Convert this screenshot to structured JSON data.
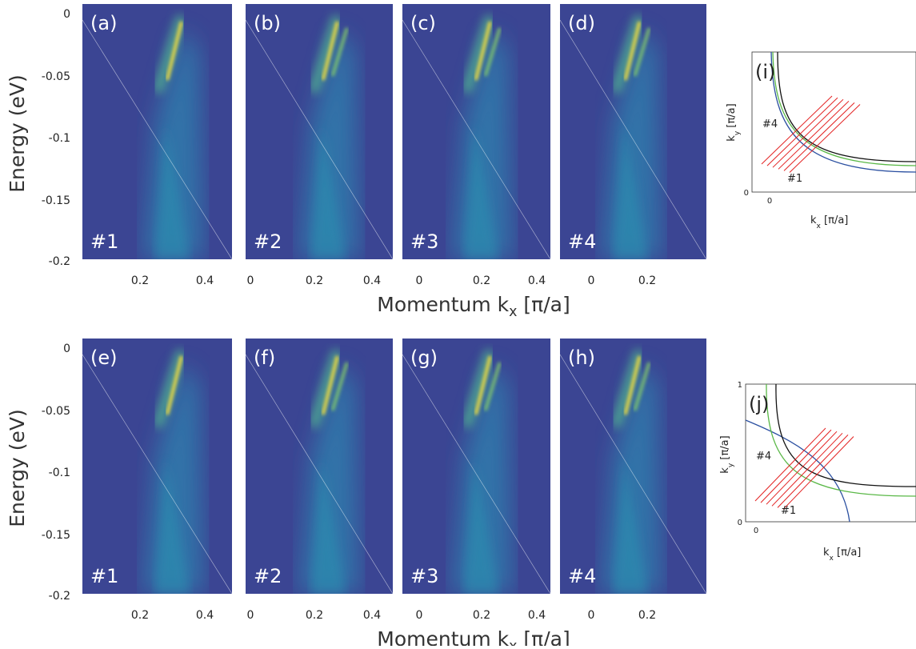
{
  "figure": {
    "rows": [
      {
        "panels": [
          {
            "label": "(a)",
            "cut": "#1",
            "xticks": [
              "0.2",
              "0.4"
            ]
          },
          {
            "label": "(b)",
            "cut": "#2",
            "xticks": [
              "0",
              "0.2",
              "0.4"
            ]
          },
          {
            "label": "(c)",
            "cut": "#3",
            "xticks": [
              "0",
              "0.2",
              "0.4"
            ]
          },
          {
            "label": "(d)",
            "cut": "#4",
            "xticks": [
              "0",
              "0.2"
            ]
          }
        ],
        "yticks": [
          "0",
          "-0.05",
          "-0.1",
          "-0.15",
          "-0.2"
        ],
        "ylabel": "Energy  (eV)",
        "xlabel": {
          "main": "Momentum k",
          "sub": "x",
          "unit": " [π/a]"
        }
      },
      {
        "panels": [
          {
            "label": "(e)",
            "cut": "#1",
            "xticks": [
              "0.2",
              "0.4"
            ]
          },
          {
            "label": "(f)",
            "cut": "#2",
            "xticks": [
              "0",
              "0.2",
              "0.4"
            ]
          },
          {
            "label": "(g)",
            "cut": "#3",
            "xticks": [
              "0",
              "0.2",
              "0.4"
            ]
          },
          {
            "label": "(h)",
            "cut": "#4",
            "xticks": [
              "0",
              "0.2"
            ]
          }
        ],
        "yticks": [
          "0",
          "-0.05",
          "-0.1",
          "-0.15",
          "-0.2"
        ],
        "ylabel": "Energy  (eV)",
        "xlabel": {
          "main": "Momentum k",
          "sub": "x",
          "unit": " [π/a]"
        }
      }
    ],
    "insets": [
      {
        "label": "(i)",
        "ylabel": {
          "main": "k",
          "sub": "y",
          "unit": " [π/a]"
        },
        "xlabel": {
          "main": "k",
          "sub": "x",
          "unit": " [π/a]"
        },
        "xticks": [
          "0"
        ],
        "yticks": [
          "0"
        ],
        "cut_first": "#1",
        "cut_last": "#4"
      },
      {
        "label": "(j)",
        "ylabel": {
          "main": "k",
          "sub": "y",
          "unit": " [π/a]"
        },
        "xlabel": {
          "main": "k",
          "sub": "x",
          "unit": " [π/a]"
        },
        "xticks": [
          "0"
        ],
        "yticks": [
          "0",
          "1"
        ],
        "cut_first": "#1",
        "cut_last": "#4"
      }
    ]
  }
}
